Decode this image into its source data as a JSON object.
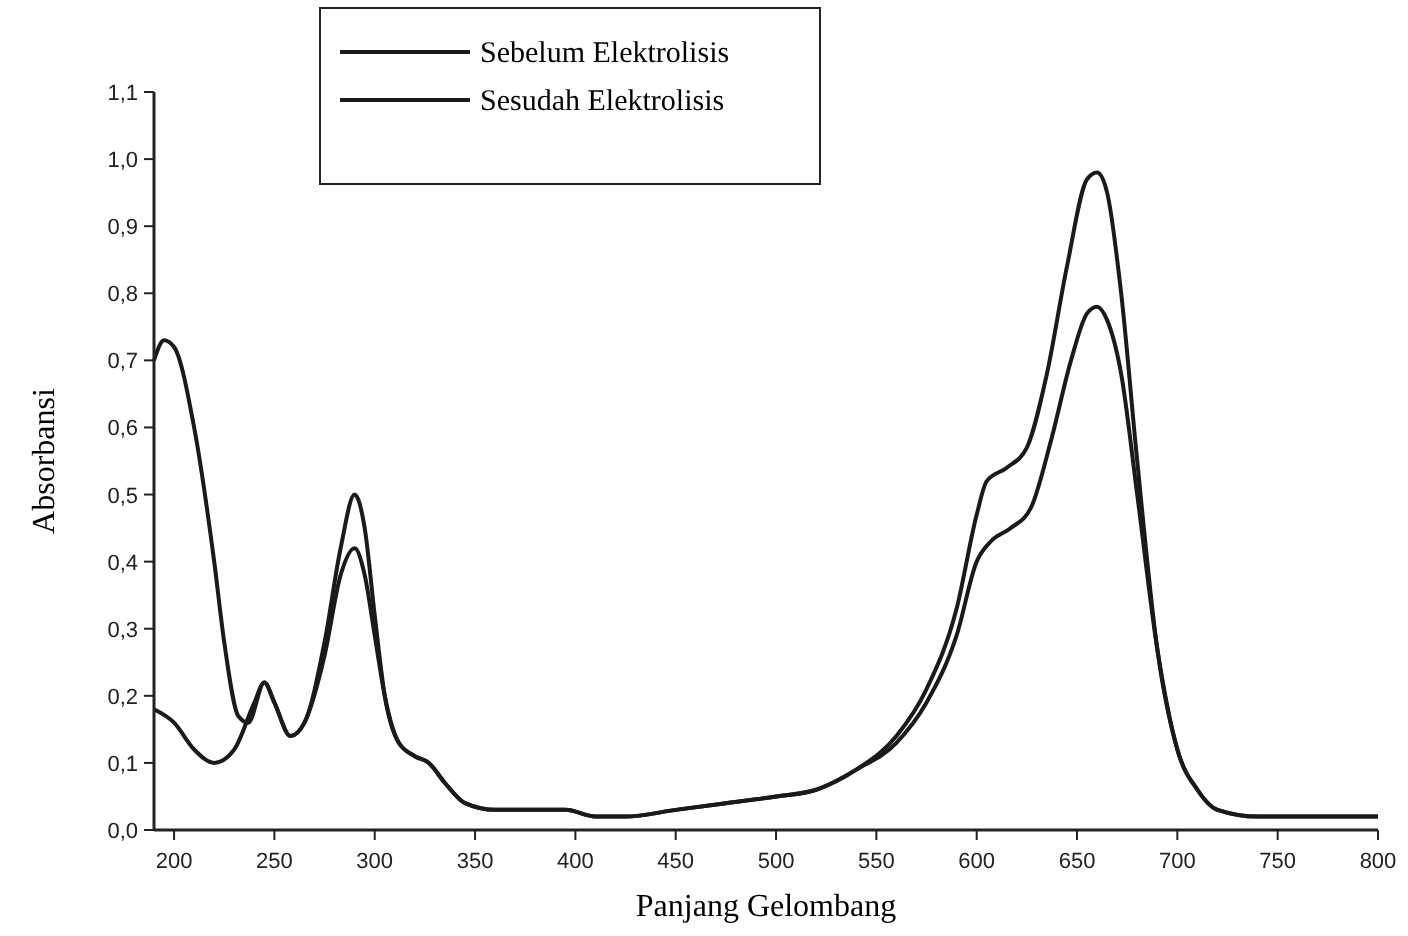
{
  "chart_data": {
    "type": "line",
    "xlabel": "Panjang Gelombang",
    "ylabel": "Absorbansi",
    "xlim": [
      190,
      800
    ],
    "ylim": [
      0,
      1.1
    ],
    "xticks": [
      200,
      250,
      300,
      350,
      400,
      450,
      500,
      550,
      600,
      650,
      700,
      750,
      800
    ],
    "yticks": [
      {
        "value": 0,
        "label": "0,0"
      },
      {
        "value": 0.1,
        "label": "0,1"
      },
      {
        "value": 0.2,
        "label": "0,2"
      },
      {
        "value": 0.3,
        "label": "0,3"
      },
      {
        "value": 0.4,
        "label": "0,4"
      },
      {
        "value": 0.5,
        "label": "0,5"
      },
      {
        "value": 0.6,
        "label": "0,6"
      },
      {
        "value": 0.7,
        "label": "0,7"
      },
      {
        "value": 0.8,
        "label": "0,8"
      },
      {
        "value": 0.9,
        "label": "0,9"
      },
      {
        "value": 1.0,
        "label": "1,0"
      },
      {
        "value": 1.1,
        "label": "1,1"
      }
    ],
    "legend": "top left",
    "grid": false,
    "marker": "none",
    "line_style": "solid",
    "series": [
      {
        "name": "Sebelum Elektrolisis",
        "color": "#1a1a1a",
        "x": [
          190,
          200,
          210,
          220,
          230,
          240,
          245,
          250,
          258,
          265,
          275,
          283,
          290,
          295,
          300,
          305,
          312,
          320,
          327,
          335,
          345,
          360,
          380,
          395,
          410,
          425,
          450,
          475,
          500,
          520,
          540,
          560,
          575,
          590,
          600,
          605,
          615,
          625,
          635,
          645,
          655,
          660,
          665,
          672,
          680,
          690,
          700,
          710,
          720,
          740,
          800
        ],
        "values": [
          0.18,
          0.16,
          0.12,
          0.1,
          0.12,
          0.19,
          0.22,
          0.19,
          0.14,
          0.16,
          0.28,
          0.42,
          0.5,
          0.45,
          0.32,
          0.2,
          0.13,
          0.11,
          0.1,
          0.07,
          0.04,
          0.03,
          0.03,
          0.03,
          0.02,
          0.02,
          0.03,
          0.04,
          0.05,
          0.06,
          0.09,
          0.14,
          0.21,
          0.33,
          0.47,
          0.52,
          0.54,
          0.57,
          0.68,
          0.84,
          0.97,
          0.98,
          0.95,
          0.8,
          0.55,
          0.27,
          0.12,
          0.06,
          0.03,
          0.02,
          0.02
        ]
      },
      {
        "name": "Sesudah Elektrolisis",
        "color": "#1a1a1a",
        "x": [
          190,
          195,
          200,
          210,
          220,
          225,
          232,
          237,
          245,
          250,
          258,
          265,
          275,
          283,
          290,
          295,
          300,
          305,
          312,
          320,
          327,
          335,
          345,
          360,
          380,
          395,
          410,
          425,
          450,
          475,
          500,
          520,
          540,
          560,
          575,
          590,
          600,
          607,
          617,
          627,
          637,
          647,
          655,
          660,
          665,
          672,
          680,
          690,
          700,
          710,
          720,
          740,
          800
        ],
        "values": [
          0.7,
          0.73,
          0.72,
          0.6,
          0.4,
          0.28,
          0.17,
          0.16,
          0.22,
          0.19,
          0.14,
          0.16,
          0.26,
          0.38,
          0.42,
          0.38,
          0.29,
          0.2,
          0.13,
          0.11,
          0.1,
          0.07,
          0.04,
          0.03,
          0.03,
          0.03,
          0.02,
          0.02,
          0.03,
          0.04,
          0.05,
          0.06,
          0.09,
          0.13,
          0.19,
          0.29,
          0.4,
          0.43,
          0.45,
          0.48,
          0.58,
          0.7,
          0.77,
          0.78,
          0.76,
          0.68,
          0.5,
          0.27,
          0.12,
          0.06,
          0.03,
          0.02,
          0.02
        ]
      }
    ]
  }
}
